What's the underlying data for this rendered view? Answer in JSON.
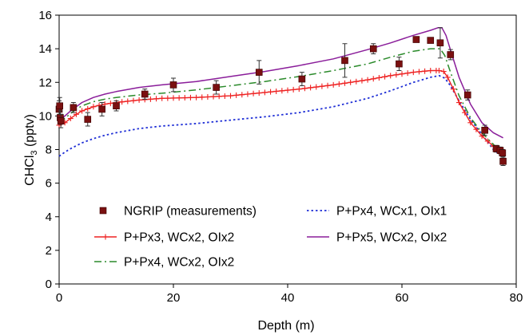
{
  "chart_data": {
    "type": "line",
    "xlabel": "Depth (m)",
    "ylabel_parts": [
      "CHCl",
      "3",
      " (pptv)"
    ],
    "xlim": [
      0,
      80
    ],
    "ylim": [
      0,
      16
    ],
    "xticks": [
      0,
      20,
      40,
      60,
      80
    ],
    "yticks": [
      0,
      2,
      4,
      6,
      8,
      10,
      12,
      14,
      16
    ],
    "grid": false,
    "legend_position": "lower-middle",
    "measurements": {
      "name": "NGRIP (measurements)",
      "color": "#7a1010",
      "points": [
        {
          "x": 0.0,
          "y": 10.4,
          "err": 0.5
        },
        {
          "x": 0.1,
          "y": 10.6,
          "err": 0.5
        },
        {
          "x": 0.2,
          "y": 9.9,
          "err": 0.4
        },
        {
          "x": 0.3,
          "y": 9.7,
          "err": 0.4
        },
        {
          "x": 2.5,
          "y": 10.5,
          "err": 0.3
        },
        {
          "x": 5.0,
          "y": 9.8,
          "err": 0.4
        },
        {
          "x": 7.5,
          "y": 10.4,
          "err": 0.4
        },
        {
          "x": 10.0,
          "y": 10.6,
          "err": 0.3
        },
        {
          "x": 15.0,
          "y": 11.3,
          "err": 0.3
        },
        {
          "x": 20.0,
          "y": 11.85,
          "err": 0.4
        },
        {
          "x": 27.5,
          "y": 11.7,
          "err": 0.4
        },
        {
          "x": 35.0,
          "y": 12.6,
          "err": 0.7
        },
        {
          "x": 42.5,
          "y": 12.2,
          "err": 0.4
        },
        {
          "x": 50.0,
          "y": 13.3,
          "err": 1.0
        },
        {
          "x": 55.0,
          "y": 14.0,
          "err": 0.3
        },
        {
          "x": 59.5,
          "y": 13.1,
          "err": 0.4
        },
        {
          "x": 62.5,
          "y": 14.55,
          "err": 0.15
        },
        {
          "x": 65.0,
          "y": 14.5,
          "err": 0.1
        },
        {
          "x": 66.7,
          "y": 14.35,
          "err": 0.9
        },
        {
          "x": 68.5,
          "y": 13.65,
          "err": 0.3
        },
        {
          "x": 71.5,
          "y": 11.25,
          "err": 0.3
        },
        {
          "x": 74.5,
          "y": 9.15,
          "err": 0.3
        },
        {
          "x": 76.5,
          "y": 8.05,
          "err": 0.2
        },
        {
          "x": 77.2,
          "y": 7.95,
          "err": 0.2
        },
        {
          "x": 77.6,
          "y": 7.8,
          "err": 0.2
        },
        {
          "x": 77.7,
          "y": 7.3,
          "err": 0.25
        }
      ]
    },
    "series": [
      {
        "name": "P+Px4, WCx1, OIx1",
        "color": "#1f2fd6",
        "style": "dotted",
        "x": [
          0,
          1,
          2,
          4,
          6,
          8,
          10,
          14,
          18,
          24,
          30,
          36,
          42,
          48,
          54,
          58,
          62,
          65,
          66.5,
          67.5,
          68.5,
          70,
          72,
          74,
          76,
          77.7
        ],
        "y": [
          7.6,
          7.85,
          8.05,
          8.4,
          8.65,
          8.85,
          9.0,
          9.25,
          9.4,
          9.55,
          9.75,
          9.95,
          10.2,
          10.55,
          11.05,
          11.5,
          12.0,
          12.3,
          12.4,
          12.25,
          11.8,
          10.9,
          9.8,
          8.9,
          8.0,
          7.55
        ]
      },
      {
        "name": "P+Px3, WCx2, OIx2",
        "color": "#ee2222",
        "style": "plus",
        "x": [
          0,
          1,
          2,
          3,
          4,
          6,
          8,
          10,
          14,
          18,
          24,
          30,
          36,
          42,
          48,
          54,
          58,
          62,
          65,
          66.5,
          67.3,
          68,
          69,
          70,
          72,
          74,
          76,
          77.7
        ],
        "y": [
          9.45,
          9.6,
          9.85,
          10.1,
          10.3,
          10.55,
          10.7,
          10.8,
          10.95,
          11.05,
          11.1,
          11.2,
          11.4,
          11.6,
          11.85,
          12.15,
          12.4,
          12.6,
          12.7,
          12.7,
          12.65,
          12.3,
          11.6,
          10.8,
          9.6,
          8.8,
          8.2,
          7.8
        ]
      },
      {
        "name": "P+Px4, WCx2, OIx2",
        "color": "#2a8a2a",
        "style": "dashdot",
        "x": [
          0,
          1,
          2,
          3,
          4,
          6,
          8,
          10,
          14,
          18,
          24,
          30,
          36,
          42,
          48,
          54,
          58,
          62,
          65,
          66.7,
          67.5,
          68.5,
          70,
          72,
          74,
          76,
          77.7
        ],
        "y": [
          9.6,
          9.85,
          10.15,
          10.4,
          10.6,
          10.85,
          11.0,
          11.1,
          11.25,
          11.35,
          11.55,
          11.8,
          12.05,
          12.35,
          12.7,
          13.1,
          13.5,
          13.85,
          14.0,
          14.0,
          13.6,
          12.6,
          11.2,
          9.9,
          9.0,
          8.3,
          7.9
        ]
      },
      {
        "name": "P+Px5, WCx2, OIx2",
        "color": "#8a1d9a",
        "style": "solid",
        "x": [
          0,
          1,
          2,
          3,
          4,
          6,
          8,
          10,
          14,
          18,
          24,
          30,
          36,
          42,
          48,
          54,
          58,
          62,
          65,
          66.3,
          67,
          67.7,
          68.7,
          70,
          72,
          74,
          76,
          77.7
        ],
        "y": [
          9.75,
          10.0,
          10.3,
          10.55,
          10.8,
          11.1,
          11.3,
          11.45,
          11.7,
          11.85,
          12.05,
          12.35,
          12.65,
          13.0,
          13.4,
          13.95,
          14.35,
          14.8,
          15.1,
          15.25,
          15.25,
          14.8,
          13.7,
          12.3,
          10.7,
          9.6,
          9.0,
          8.7
        ]
      }
    ]
  }
}
